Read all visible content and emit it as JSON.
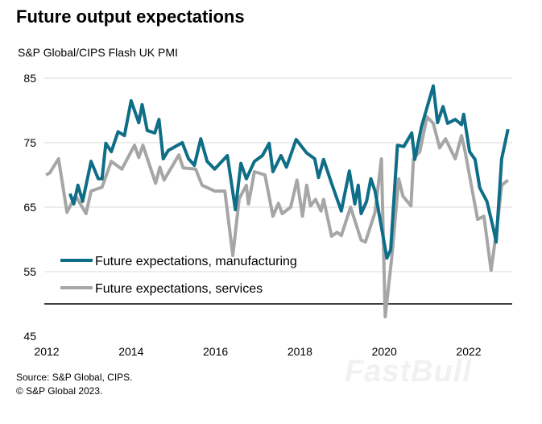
{
  "title": "Future output expectations",
  "subtitle": "S&P Global/CIPS Flash UK PMI",
  "source_lines": [
    "Source: S&P Global, CIPS.",
    "© S&P Global 2023."
  ],
  "watermark": "FastBull",
  "chart_data": {
    "type": "line",
    "title": "Future output expectations",
    "subtitle": "S&P Global/CIPS Flash UK PMI",
    "xlim": [
      2012,
      2023.2
    ],
    "ylim": [
      45,
      85
    ],
    "x_ticks": [
      "2012",
      "2014",
      "2016",
      "2018",
      "2020",
      "2022"
    ],
    "y_ticks": [
      "45",
      "55",
      "65",
      "75",
      "85"
    ],
    "grid": "horizontal",
    "reference_line": 50,
    "legend_placement": "bottom-left",
    "colors": {
      "manufacturing": "#0f6e87",
      "services": "#a6a6a6",
      "reference": "#000000",
      "grid": "#d9d9d9"
    },
    "series": [
      {
        "name": "Future expectations, manufacturing",
        "x": [
          2012.57,
          2012.66,
          2012.76,
          2012.87,
          2013.07,
          2013.24,
          2013.33,
          2013.42,
          2013.55,
          2013.71,
          2013.86,
          2014.02,
          2014.2,
          2014.28,
          2014.4,
          2014.58,
          2014.68,
          2014.78,
          2014.9,
          2015.23,
          2015.38,
          2015.52,
          2015.67,
          2015.82,
          2016.0,
          2016.3,
          2016.49,
          2016.62,
          2016.75,
          2016.94,
          2017.13,
          2017.29,
          2017.38,
          2017.57,
          2017.7,
          2017.93,
          2018.18,
          2018.37,
          2018.46,
          2018.58,
          2018.77,
          2019.0,
          2019.19,
          2019.32,
          2019.4,
          2019.47,
          2019.6,
          2019.7,
          2019.8,
          2020.08,
          2020.17,
          2020.33,
          2020.48,
          2020.67,
          2020.74,
          2020.9,
          2021.18,
          2021.28,
          2021.41,
          2021.52,
          2021.7,
          2021.85,
          2021.9,
          2022.04,
          2022.17,
          2022.28,
          2022.45,
          2022.6,
          2022.67,
          2022.8,
          2022.95
        ],
        "values": [
          67.1,
          65.5,
          68.4,
          65.9,
          72.1,
          69.4,
          69.4,
          74.9,
          73.6,
          76.7,
          76.1,
          81.5,
          78.1,
          80.9,
          76.9,
          76.5,
          78.6,
          72.5,
          73.8,
          75.0,
          72.5,
          71.5,
          75.6,
          72.1,
          70.9,
          73.0,
          64.6,
          71.8,
          69.4,
          72.1,
          73.0,
          74.9,
          70.5,
          73.0,
          71.2,
          75.5,
          73.4,
          72.5,
          69.6,
          72.4,
          68.7,
          64.4,
          70.6,
          65.5,
          68.4,
          64.0,
          65.9,
          69.4,
          67.5,
          57.1,
          58.4,
          74.6,
          74.4,
          76.5,
          72.4,
          77.5,
          83.8,
          78.1,
          80.6,
          78.0,
          78.6,
          77.8,
          79.4,
          73.6,
          72.4,
          68.0,
          65.9,
          61.8,
          59.6,
          72.5,
          77.1
        ]
      },
      {
        "name": "Future expectations, services",
        "x": [
          2012.0,
          2012.09,
          2012.3,
          2012.5,
          2012.7,
          2012.95,
          2013.07,
          2013.33,
          2013.55,
          2013.8,
          2014.1,
          2014.2,
          2014.3,
          2014.6,
          2014.7,
          2014.8,
          2015.15,
          2015.25,
          2015.55,
          2015.7,
          2016.0,
          2016.24,
          2016.43,
          2016.58,
          2016.75,
          2016.8,
          2016.94,
          2017.19,
          2017.38,
          2017.51,
          2017.6,
          2017.8,
          2017.95,
          2018.08,
          2018.18,
          2018.27,
          2018.39,
          2018.52,
          2018.58,
          2018.77,
          2018.9,
          2019.0,
          2019.22,
          2019.47,
          2019.57,
          2019.8,
          2019.95,
          2020.04,
          2020.2,
          2020.36,
          2020.46,
          2020.65,
          2020.71,
          2020.86,
          2021.03,
          2021.18,
          2021.33,
          2021.47,
          2021.7,
          2021.85,
          2021.94,
          2022.08,
          2022.23,
          2022.38,
          2022.55,
          2022.7,
          2022.8,
          2022.95
        ],
        "values": [
          70.0,
          70.3,
          72.5,
          64.2,
          66.8,
          64.0,
          67.5,
          68.1,
          72.1,
          70.9,
          74.6,
          72.7,
          74.6,
          68.7,
          71.2,
          69.2,
          73.1,
          71.1,
          70.9,
          68.4,
          67.5,
          67.5,
          57.5,
          66.3,
          68.4,
          65.5,
          70.5,
          70.0,
          63.6,
          65.6,
          64.0,
          65.0,
          69.2,
          63.6,
          68.4,
          65.2,
          66.2,
          64.4,
          66.2,
          60.5,
          61.1,
          60.6,
          65.0,
          59.9,
          59.6,
          64.2,
          72.5,
          48.0,
          57.5,
          69.4,
          66.7,
          65.2,
          72.5,
          73.6,
          79.0,
          78.0,
          74.2,
          75.6,
          72.5,
          76.1,
          73.4,
          68.4,
          63.1,
          63.6,
          55.2,
          62.5,
          68.4,
          69.2
        ]
      }
    ]
  }
}
